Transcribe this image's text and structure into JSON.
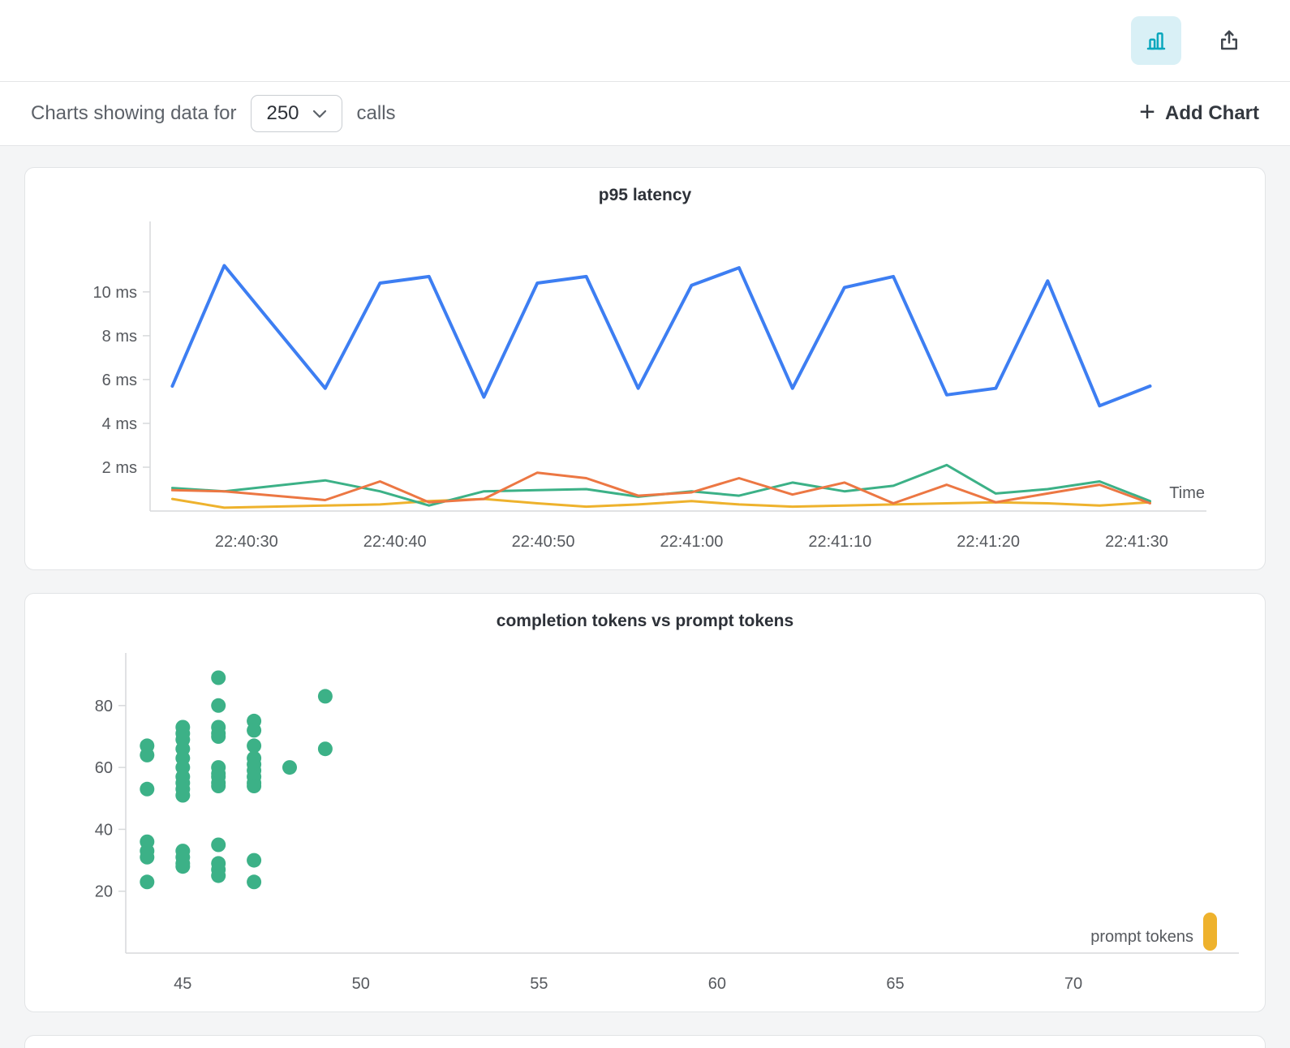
{
  "icons": {
    "plus": "+"
  },
  "colors": {
    "accent_blue": "#3d7ef2",
    "accent_orange": "#ec7743",
    "accent_green": "#3cb187",
    "accent_yellow": "#eeb22d",
    "icon_teal": "#0aa7bd",
    "active_icon_bg": "#d9f0f6"
  },
  "toolbar": {
    "prefix": "Charts showing data for",
    "calls_count": "250",
    "suffix": "calls",
    "add_chart_label": "Add Chart"
  },
  "chart_data": [
    {
      "type": "line",
      "title": "p95 latency",
      "xlabel": "Time",
      "xlim": [
        -1.5,
        68.5
      ],
      "ylim": [
        0,
        12.4
      ],
      "grid": false,
      "legend": "none",
      "xticks": [
        {
          "v": 5,
          "label": "22:40:30"
        },
        {
          "v": 15,
          "label": "22:40:40"
        },
        {
          "v": 25,
          "label": "22:40:50"
        },
        {
          "v": 35,
          "label": "22:41:00"
        },
        {
          "v": 45,
          "label": "22:41:10"
        },
        {
          "v": 55,
          "label": "22:41:20"
        },
        {
          "v": 65,
          "label": "22:41:30"
        }
      ],
      "yticks": [
        {
          "v": 2,
          "label": "2 ms"
        },
        {
          "v": 4,
          "label": "4 ms"
        },
        {
          "v": 6,
          "label": "6 ms"
        },
        {
          "v": 8,
          "label": "8 ms"
        },
        {
          "v": 10,
          "label": "10 ms"
        }
      ],
      "series": [
        {
          "name": "blue",
          "color": "#3d7ef2",
          "width": 4,
          "points": [
            [
              0,
              5.7
            ],
            [
              3.5,
              11.2
            ],
            [
              10.3,
              5.6
            ],
            [
              14,
              10.4
            ],
            [
              17.3,
              10.7
            ],
            [
              21,
              5.2
            ],
            [
              24.6,
              10.4
            ],
            [
              27.9,
              10.7
            ],
            [
              31.4,
              5.6
            ],
            [
              35,
              10.3
            ],
            [
              38.2,
              11.1
            ],
            [
              41.8,
              5.6
            ],
            [
              45.3,
              10.2
            ],
            [
              48.6,
              10.7
            ],
            [
              52.2,
              5.3
            ],
            [
              55.5,
              5.6
            ],
            [
              59,
              10.5
            ],
            [
              62.5,
              4.8
            ],
            [
              65.9,
              5.7
            ]
          ]
        },
        {
          "name": "orange",
          "color": "#ec7743",
          "width": 3,
          "points": [
            [
              0,
              0.95
            ],
            [
              3.5,
              0.9
            ],
            [
              10.3,
              0.5
            ],
            [
              14,
              1.35
            ],
            [
              17.3,
              0.4
            ],
            [
              21,
              0.55
            ],
            [
              24.6,
              1.75
            ],
            [
              27.9,
              1.5
            ],
            [
              31.4,
              0.7
            ],
            [
              35,
              0.85
            ],
            [
              38.2,
              1.5
            ],
            [
              41.8,
              0.75
            ],
            [
              45.3,
              1.3
            ],
            [
              48.6,
              0.35
            ],
            [
              52.2,
              1.2
            ],
            [
              55.5,
              0.4
            ],
            [
              59,
              0.8
            ],
            [
              62.5,
              1.2
            ],
            [
              65.9,
              0.35
            ]
          ]
        },
        {
          "name": "green",
          "color": "#3cb187",
          "width": 3,
          "points": [
            [
              0,
              1.05
            ],
            [
              3.5,
              0.9
            ],
            [
              10.3,
              1.4
            ],
            [
              14,
              0.9
            ],
            [
              17.3,
              0.25
            ],
            [
              21,
              0.9
            ],
            [
              24.6,
              0.95
            ],
            [
              27.9,
              1.0
            ],
            [
              31.4,
              0.65
            ],
            [
              35,
              0.9
            ],
            [
              38.2,
              0.7
            ],
            [
              41.8,
              1.3
            ],
            [
              45.3,
              0.9
            ],
            [
              48.6,
              1.15
            ],
            [
              52.2,
              2.1
            ],
            [
              55.5,
              0.8
            ],
            [
              59,
              1.0
            ],
            [
              62.5,
              1.35
            ],
            [
              65.9,
              0.45
            ]
          ]
        },
        {
          "name": "yellow",
          "color": "#eeb22d",
          "width": 3,
          "points": [
            [
              0,
              0.55
            ],
            [
              3.5,
              0.15
            ],
            [
              10.3,
              0.25
            ],
            [
              14,
              0.3
            ],
            [
              17.3,
              0.45
            ],
            [
              21,
              0.55
            ],
            [
              24.6,
              0.35
            ],
            [
              27.9,
              0.2
            ],
            [
              31.4,
              0.3
            ],
            [
              35,
              0.45
            ],
            [
              38.2,
              0.3
            ],
            [
              41.8,
              0.2
            ],
            [
              45.3,
              0.25
            ],
            [
              48.6,
              0.3
            ],
            [
              52.2,
              0.35
            ],
            [
              55.5,
              0.4
            ],
            [
              59,
              0.35
            ],
            [
              62.5,
              0.25
            ],
            [
              65.9,
              0.4
            ]
          ]
        }
      ]
    },
    {
      "type": "scatter",
      "title": "completion tokens vs prompt tokens",
      "xlabel": "prompt tokens",
      "xlim": [
        43.4,
        74.6
      ],
      "ylim": [
        0,
        97
      ],
      "grid": false,
      "xticks": [
        45,
        50,
        55,
        60,
        65,
        70
      ],
      "yticks": [
        20,
        40,
        60,
        80
      ],
      "point_color": "#3cb187",
      "legend_marker_color": "#eeb22d",
      "points": [
        [
          44,
          67
        ],
        [
          44,
          64
        ],
        [
          44,
          53
        ],
        [
          44,
          36
        ],
        [
          44,
          33
        ],
        [
          44,
          31
        ],
        [
          44,
          23
        ],
        [
          45,
          73
        ],
        [
          45,
          71
        ],
        [
          45,
          69
        ],
        [
          45,
          66
        ],
        [
          45,
          63
        ],
        [
          45,
          60
        ],
        [
          45,
          57
        ],
        [
          45,
          55
        ],
        [
          45,
          53
        ],
        [
          45,
          51
        ],
        [
          45,
          33
        ],
        [
          45,
          31
        ],
        [
          45,
          29
        ],
        [
          45,
          28
        ],
        [
          46,
          89
        ],
        [
          46,
          80
        ],
        [
          46,
          73
        ],
        [
          46,
          71
        ],
        [
          46,
          70
        ],
        [
          46,
          60
        ],
        [
          46,
          58
        ],
        [
          46,
          57
        ],
        [
          46,
          55
        ],
        [
          46,
          54
        ],
        [
          46,
          35
        ],
        [
          46,
          29
        ],
        [
          46,
          27
        ],
        [
          46,
          25
        ],
        [
          47,
          75
        ],
        [
          47,
          72
        ],
        [
          47,
          67
        ],
        [
          47,
          63
        ],
        [
          47,
          61
        ],
        [
          47,
          59
        ],
        [
          47,
          57
        ],
        [
          47,
          55
        ],
        [
          47,
          54
        ],
        [
          47,
          30
        ],
        [
          47,
          23
        ],
        [
          48,
          60
        ],
        [
          49,
          83
        ],
        [
          49,
          66
        ]
      ]
    }
  ]
}
